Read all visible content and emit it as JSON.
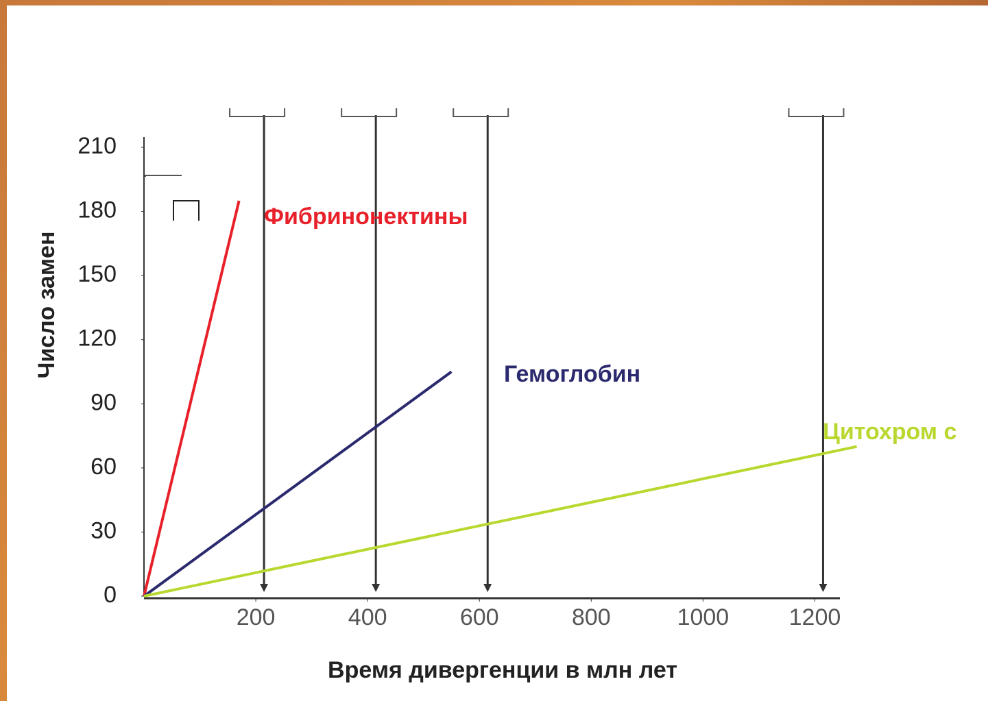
{
  "chart_data": {
    "type": "line",
    "y_label": "Число замен",
    "x_label": "Время дивергенции в млн лет",
    "series": [
      {
        "name": "Фибринонектины",
        "color": "#e8202a",
        "x": [
          0,
          170
        ],
        "values": [
          0,
          185
        ]
      },
      {
        "name": "Гемоглобин",
        "color": "#2c2a6e",
        "x": [
          0,
          550
        ],
        "values": [
          0,
          105
        ]
      },
      {
        "name": "Цитохром с",
        "color": "#b8d830",
        "x": [
          0,
          1275
        ],
        "values": [
          0,
          70
        ]
      }
    ],
    "xlim": [
      0,
      1300
    ],
    "xticks": [
      200,
      400,
      600,
      800,
      1000,
      1200
    ],
    "ylim": [
      0,
      210
    ],
    "yticks": [
      0,
      30,
      60,
      90,
      120,
      150,
      180,
      210
    ]
  }
}
